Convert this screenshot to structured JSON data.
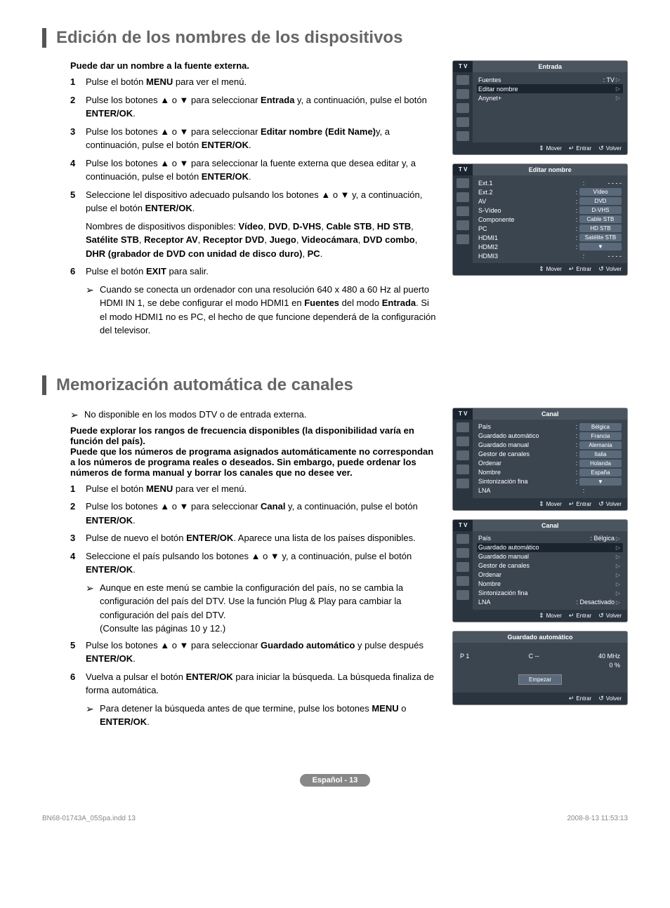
{
  "section1": {
    "title": "Edición de los nombres de los dispositivos",
    "intro": "Puede dar un nombre a la fuente externa.",
    "steps": [
      {
        "n": "1",
        "text": "Pulse el botón <b>MENU</b> para ver el menú."
      },
      {
        "n": "2",
        "text": "Pulse los botones ▲ o ▼ para seleccionar <b>Entrada</b> y, a continuación, pulse el botón <b>ENTER/OK</b>."
      },
      {
        "n": "3",
        "text": "Pulse los botones ▲ o ▼ para seleccionar <b>Editar nombre (Edit Name)</b>y, a continuación, pulse el botón <b>ENTER/OK</b>."
      },
      {
        "n": "4",
        "text": "Pulse los botones ▲ o ▼ para seleccionar la fuente externa que desea editar y, a continuación, pulse el botón <b>ENTER/OK</b>."
      },
      {
        "n": "5",
        "text": "Seleccione lel dispositivo adecuado pulsando los botones ▲ o ▼ y, a continuación, pulse el botón <b>ENTER/OK</b>."
      },
      {
        "n": "6",
        "text": "Pulse el botón <b>EXIT</b> para salir."
      }
    ],
    "devicesLine": "Nombres de dispositivos disponibles: <b>Vídeo</b>, <b>DVD</b>, <b>D-VHS</b>, <b>Cable STB</b>, <b>HD STB</b>, <b>Satélite STB</b>, <b>Receptor AV</b>, <b>Receptor DVD</b>, <b>Juego</b>, <b>Videocámara</b>, <b>DVD combo</b>, <b>DHR (grabador de DVD con unidad de disco duro)</b>, <b>PC</b>.",
    "note6": "Cuando se conecta un ordenador con una resolución 640 x 480 a 60 Hz al puerto HDMI IN 1, se debe configurar el modo HDMI1 en <b>Fuentes</b> del modo <b>Entrada</b>. Si el modo HDMI1 no es PC, el hecho de que funcione dependerá de la configuración del televisor."
  },
  "section2": {
    "title": "Memorización automática de canales",
    "introNote": "No disponible en los modos DTV o de entrada externa.",
    "introBold": "Puede explorar los rangos de frecuencia disponibles (la disponibilidad varía en función del país).\nPuede que los números de programa asignados automáticamente no correspondan a los números de programa reales o deseados. Sin embargo, puede ordenar los números de forma manual y borrar los canales que no desee ver.",
    "steps": [
      {
        "n": "1",
        "text": "Pulse el botón <b>MENU</b> para ver el menú."
      },
      {
        "n": "2",
        "text": "Pulse los botones ▲ o ▼ para seleccionar <b>Canal</b> y, a continuación, pulse el botón <b>ENTER/OK</b>."
      },
      {
        "n": "3",
        "text": "Pulse de nuevo el botón <b>ENTER/OK</b>. Aparece una lista de los países disponibles."
      },
      {
        "n": "4",
        "text": "Seleccione el país pulsando los botones ▲ o ▼ y, a continuación, pulse el botón <b>ENTER/OK</b>."
      },
      {
        "n": "5",
        "text": "Pulse los botones ▲ o ▼ para seleccionar <b>Guardado automático</b> y pulse después <b>ENTER/OK</b>."
      },
      {
        "n": "6",
        "text": "Vuelva a pulsar el botón <b>ENTER/OK</b> para iniciar la búsqueda. La búsqueda finaliza de forma automática."
      }
    ],
    "note4a": "Aunque en este menú se cambie la configuración del país, no se cambia la configuración del país del DTV. Use la función Plug & Play para cambiar la configuración del país del DTV.",
    "note4b": "(Consulte las páginas 10 y 12.)",
    "note6": "Para detener la búsqueda antes de que termine, pulse los botones <b>MENU</b> o <b>ENTER/OK</b>."
  },
  "panels": {
    "tv": "T V",
    "mover": "Mover",
    "entrar": "Entrar",
    "volver": "Volver",
    "p1": {
      "title": "Entrada",
      "rows": [
        {
          "label": "Fuentes",
          "val": ": TV",
          "arrow": true
        },
        {
          "label": "Editar nombre",
          "sel": true,
          "arrow": true
        },
        {
          "label": "Anynet+",
          "arrow": true
        }
      ]
    },
    "p2": {
      "title": "Editar nombre",
      "left": [
        "Ext.1",
        "Ext.2",
        "AV",
        "S-Vídeo",
        "Componente",
        "PC",
        "HDMI1",
        "HDMI2",
        "HDMI3"
      ],
      "right": [
        "- - - -",
        "Vídeo",
        "DVD",
        "D-VHS",
        "Cable STB",
        "HD STB",
        "Satélite STB",
        "▼",
        "- - - -"
      ]
    },
    "p3": {
      "title": "Canal",
      "left": [
        "País",
        "Guardado automático",
        "Guardado manual",
        "Gestor de canales",
        "Ordenar",
        "Nombre",
        "Sintonización fina",
        "LNA"
      ],
      "right": [
        "Bélgica",
        "Francia",
        "Alemania",
        "Italia",
        "Holanda",
        "España",
        "▼"
      ]
    },
    "p4": {
      "title": "Canal",
      "rows": [
        {
          "label": "País",
          "val": ": Bélgica",
          "arrow": true
        },
        {
          "label": "Guardado automático",
          "sel": true,
          "arrow": true
        },
        {
          "label": "Guardado manual",
          "arrow": true
        },
        {
          "label": "Gestor de canales",
          "arrow": true
        },
        {
          "label": "Ordenar",
          "arrow": true
        },
        {
          "label": "Nombre",
          "arrow": true
        },
        {
          "label": "Sintonización fina",
          "arrow": true
        },
        {
          "label": "LNA",
          "val": ": Desactivado",
          "arrow": true
        }
      ]
    },
    "p5": {
      "title": "Guardado automático",
      "p": "P   1",
      "c": "C   --",
      "mhz": "40 MHz",
      "pct": "0  %",
      "btn": "Empezar"
    }
  },
  "footer": {
    "badge": "Español - 13",
    "doc": "BN68-01743A_05Spa.indd   13",
    "stamp": "2008-8-13   11:53:13"
  }
}
